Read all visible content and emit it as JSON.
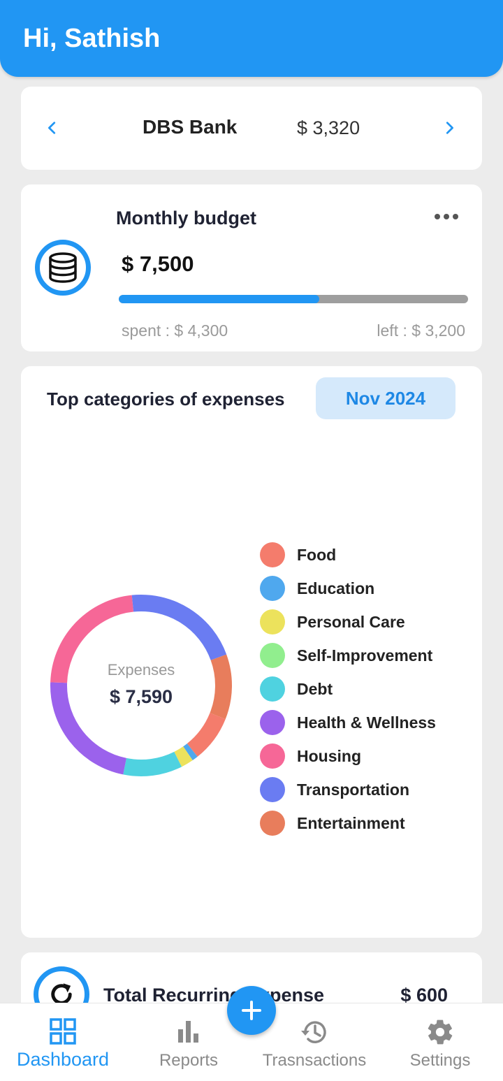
{
  "header": {
    "greeting": "Hi, Sathish"
  },
  "account": {
    "name": "DBS Bank",
    "balance": "$ 3,320"
  },
  "budget": {
    "title": "Monthly budget",
    "amount": "$ 7,500",
    "spent_label": "spent : $ 4,300",
    "left_label": "left : $  3,200",
    "progress_fraction": 0.573
  },
  "categories": {
    "title": "Top categories of expenses",
    "month": "Nov 2024",
    "center_label": "Expenses",
    "center_total": "$ 7,590",
    "legend": [
      {
        "label": "Food",
        "color": "#f47c6c"
      },
      {
        "label": "Education",
        "color": "#4fa8ee"
      },
      {
        "label": "Personal Care",
        "color": "#ece25c"
      },
      {
        "label": "Self-Improvement",
        "color": "#91ee8e"
      },
      {
        "label": "Debt",
        "color": "#4fd2e0"
      },
      {
        "label": "Health & Wellness",
        "color": "#9b62ec"
      },
      {
        "label": "Housing",
        "color": "#f66797"
      },
      {
        "label": "Transportation",
        "color": "#6a7cf2"
      },
      {
        "label": "Entertainment",
        "color": "#e87d5c"
      }
    ]
  },
  "chart_data": {
    "type": "pie",
    "title": "Top categories of expenses",
    "categories": [
      "Food",
      "Education",
      "Personal Care",
      "Self-Improvement",
      "Debt",
      "Health & Wellness",
      "Housing",
      "Transportation",
      "Entertainment"
    ],
    "values": [
      630,
      80,
      170,
      0,
      800,
      1700,
      1730,
      1600,
      880
    ],
    "total": "$ 7,590"
  },
  "recurring": {
    "title": "Total Recurring Expense",
    "amount": "$ 600"
  },
  "nav": {
    "items": [
      {
        "label": "Dashboard",
        "icon": "dashboard-icon"
      },
      {
        "label": "Reports",
        "icon": "bar-chart-icon"
      },
      {
        "label": "Trasnsactions",
        "icon": "history-icon"
      },
      {
        "label": "Settings",
        "icon": "gear-icon"
      }
    ],
    "fab_icon": "plus-icon"
  },
  "colors": {
    "accent": "#2196f3",
    "progress_track": "#9e9e9e",
    "pill_bg": "#d5e9fb"
  }
}
